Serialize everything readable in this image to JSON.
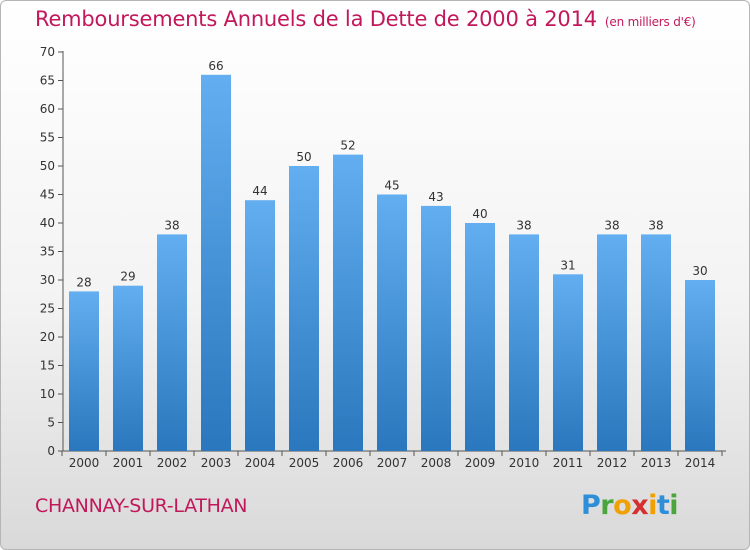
{
  "chart_data": {
    "type": "bar",
    "title": "Remboursements Annuels de la Dette de 2000 à 2014",
    "unit_note": "(en milliers d'€)",
    "categories": [
      "2000",
      "2001",
      "2002",
      "2003",
      "2004",
      "2005",
      "2006",
      "2007",
      "2008",
      "2009",
      "2010",
      "2011",
      "2012",
      "2013",
      "2014"
    ],
    "values": [
      28,
      29,
      38,
      66,
      44,
      50,
      52,
      45,
      43,
      40,
      38,
      31,
      38,
      38,
      30
    ],
    "ylim": [
      0,
      70
    ],
    "yticks": [
      0,
      5,
      10,
      15,
      20,
      25,
      30,
      35,
      40,
      45,
      50,
      55,
      60,
      65,
      70
    ],
    "grid": false,
    "bar_color": "#3b8fd6",
    "title_color": "#c2185b"
  },
  "footer": {
    "city": "CHANNAY-SUR-LATHAN",
    "logo": "Proxiti"
  }
}
